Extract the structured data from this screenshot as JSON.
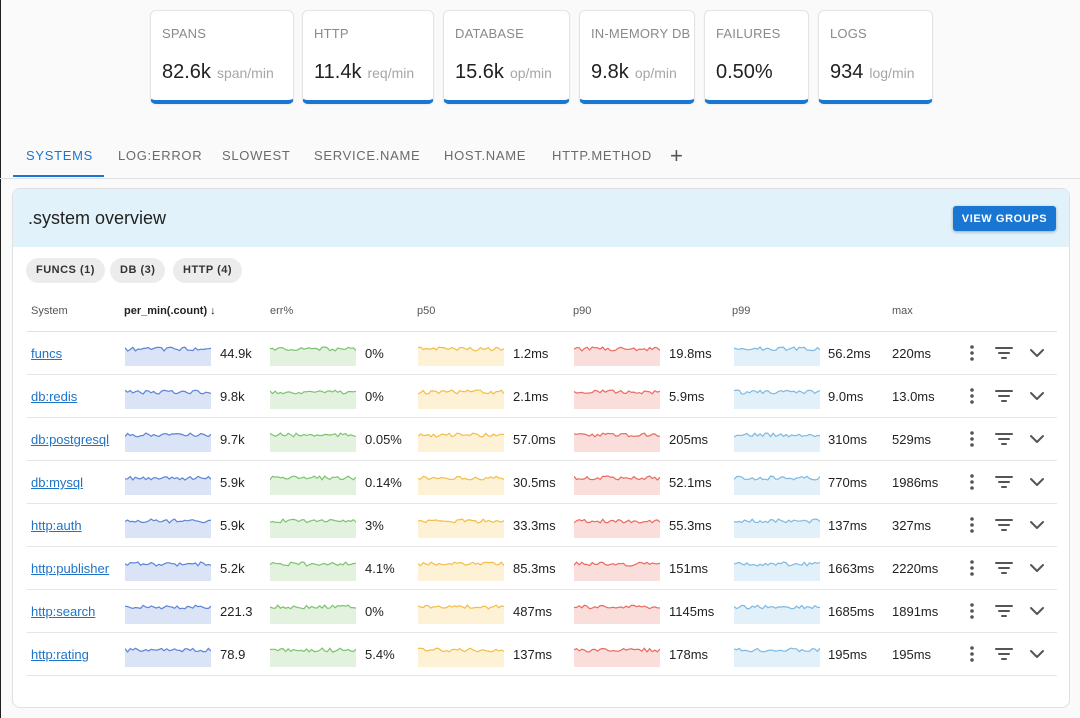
{
  "stats": [
    {
      "label": "SPANS",
      "value": "82.6k",
      "unit": "span/min"
    },
    {
      "label": "HTTP",
      "value": "11.4k",
      "unit": "req/min"
    },
    {
      "label": "DATABASE",
      "value": "15.6k",
      "unit": "op/min"
    },
    {
      "label": "IN-MEMORY DB",
      "value": "9.8k",
      "unit": "op/min"
    },
    {
      "label": "FAILURES",
      "value": "0.50%",
      "unit": ""
    },
    {
      "label": "LOGS",
      "value": "934",
      "unit": "log/min"
    }
  ],
  "tabs": [
    {
      "label": "SYSTEMS",
      "active": true
    },
    {
      "label": "LOG:ERROR",
      "active": false
    },
    {
      "label": "SLOWEST",
      "active": false
    },
    {
      "label": "SERVICE.NAME",
      "active": false
    },
    {
      "label": "HOST.NAME",
      "active": false
    },
    {
      "label": "HTTP.METHOD",
      "active": false
    }
  ],
  "tab_add_label": "+",
  "panel": {
    "title": ".system overview",
    "view_groups_label": "VIEW GROUPS"
  },
  "chips": [
    "FUNCS (1)",
    "DB (3)",
    "HTTP (4)"
  ],
  "columns": [
    "System",
    "per_min(.count) ↓",
    "err%",
    "p50",
    "p90",
    "p99",
    "max"
  ],
  "colors": {
    "accent": "#1976d2",
    "per_min": "#5b84d6",
    "err": "#7cc36e",
    "p50": "#f4bd45",
    "p90": "#ea6a5f",
    "p99": "#7db9e3"
  },
  "icons": {
    "more": "vertical-dots",
    "filter": "filter-lines",
    "expand": "chevron-down"
  },
  "rows": [
    {
      "system": "funcs",
      "per_min": "44.9k",
      "err": "0%",
      "p50": "1.2ms",
      "p90": "19.8ms",
      "p99": "56.2ms",
      "max": "220ms"
    },
    {
      "system": "db:redis",
      "per_min": "9.8k",
      "err": "0%",
      "p50": "2.1ms",
      "p90": "5.9ms",
      "p99": "9.0ms",
      "max": "13.0ms"
    },
    {
      "system": "db:postgresql",
      "per_min": "9.7k",
      "err": "0.05%",
      "p50": "57.0ms",
      "p90": "205ms",
      "p99": "310ms",
      "max": "529ms"
    },
    {
      "system": "db:mysql",
      "per_min": "5.9k",
      "err": "0.14%",
      "p50": "30.5ms",
      "p90": "52.1ms",
      "p99": "770ms",
      "max": "1986ms"
    },
    {
      "system": "http:auth",
      "per_min": "5.9k",
      "err": "3%",
      "p50": "33.3ms",
      "p90": "55.3ms",
      "p99": "137ms",
      "max": "327ms"
    },
    {
      "system": "http:publisher",
      "per_min": "5.2k",
      "err": "4.1%",
      "p50": "85.3ms",
      "p90": "151ms",
      "p99": "1663ms",
      "max": "2220ms"
    },
    {
      "system": "http:search",
      "per_min": "221.3",
      "err": "0%",
      "p50": "487ms",
      "p90": "1145ms",
      "p99": "1685ms",
      "max": "1891ms"
    },
    {
      "system": "http:rating",
      "per_min": "78.9",
      "err": "5.4%",
      "p50": "137ms",
      "p90": "178ms",
      "p99": "195ms",
      "max": "195ms"
    }
  ]
}
